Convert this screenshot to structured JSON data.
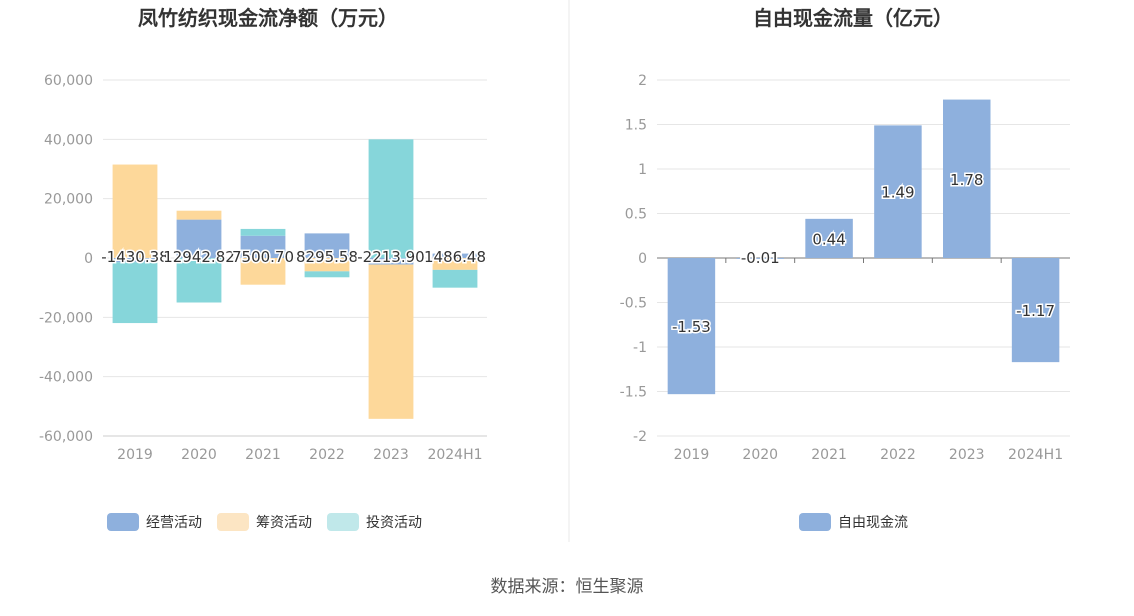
{
  "chart_data": [
    {
      "type": "bar",
      "stacked": true,
      "title": "凤竹纺织现金流净额（万元）",
      "categories": [
        "2019",
        "2020",
        "2021",
        "2022",
        "2023",
        "2024H1"
      ],
      "ylim": [
        -60000,
        60000
      ],
      "yticks": [
        60000,
        40000,
        20000,
        0,
        -20000,
        -40000,
        -60000
      ],
      "ytick_labels": [
        "60,000",
        "40,000",
        "20,000",
        "0",
        "-20,000",
        "-40,000",
        "-60,000"
      ],
      "series": [
        {
          "name": "经营活动",
          "color": "#8eb0dd",
          "values": [
            -1430.38,
            12942.82,
            7500.7,
            8295.58,
            -2213.9,
            1486.48
          ]
        },
        {
          "name": "筹资活动",
          "color": "#fdd89a",
          "values": [
            31500,
            3000,
            -9000,
            -4500,
            -52000,
            -4000
          ]
        },
        {
          "name": "投资活动",
          "color": "#86d6da",
          "values": [
            -20500,
            -15000,
            2300,
            -2000,
            40000,
            -6000
          ]
        }
      ],
      "data_labels": [
        "-1430.38",
        "12942.82",
        "7500.70",
        "8295.58",
        "-2213.90",
        "1486.48"
      ],
      "legend_colors": [
        "#8eb0dd",
        "#fce5c3",
        "#c0e8ea"
      ],
      "legend": "bottom"
    },
    {
      "type": "bar",
      "title": "自由现金流量（亿元）",
      "categories": [
        "2019",
        "2020",
        "2021",
        "2022",
        "2023",
        "2024H1"
      ],
      "ylim": [
        -2,
        2
      ],
      "yticks": [
        2,
        1.5,
        1,
        0.5,
        0,
        -0.5,
        -1,
        -1.5,
        -2
      ],
      "ytick_labels": [
        "2",
        "1.5",
        "1",
        "0.5",
        "0",
        "-0.5",
        "-1",
        "-1.5",
        "-2"
      ],
      "series": [
        {
          "name": "自由现金流",
          "color": "#8eb0dd",
          "values": [
            -1.53,
            -0.01,
            0.44,
            1.49,
            1.78,
            -1.17
          ]
        }
      ],
      "data_labels": [
        "-1.53",
        "-0.01",
        "0.44",
        "1.49",
        "1.78",
        "-1.17"
      ],
      "legend": "bottom"
    }
  ],
  "footer": {
    "source": "数据来源：恒生聚源"
  }
}
